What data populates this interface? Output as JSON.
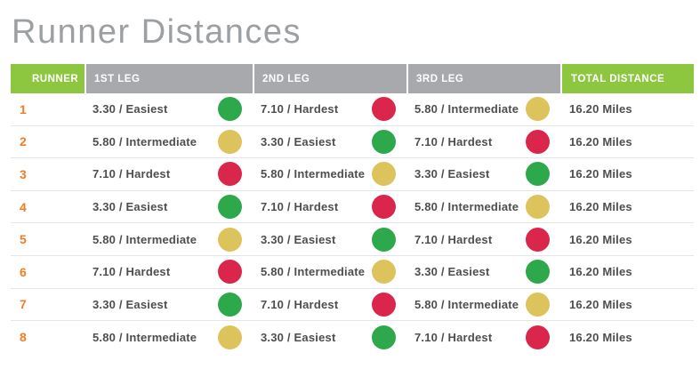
{
  "title": "Runner Distances",
  "colors": {
    "header_accent_green": "#8dc63f",
    "header_gray": "#a7a9ac",
    "runner_number_orange": "#f47b20",
    "body_text": "#4d4e50",
    "divider": "#e5e6e8",
    "title_gray": "#9da0a3",
    "dot_green": "#2da84b",
    "dot_yellow": "#ddc35b",
    "dot_red": "#d9264a"
  },
  "chart_data": {
    "type": "table",
    "title": "Runner Distances",
    "columns": [
      {
        "label": "RUNNER",
        "accent": true
      },
      {
        "label": "1ST LEG",
        "accent": false
      },
      {
        "label": "2ND LEG",
        "accent": false
      },
      {
        "label": "3RD LEG",
        "accent": false
      },
      {
        "label": "TOTAL DISTANCE",
        "accent": true
      }
    ],
    "difficulty_colors": {
      "Easiest": "#2da84b",
      "Intermediate": "#ddc35b",
      "Hardest": "#d9264a"
    },
    "rows": [
      {
        "runner": "1",
        "legs": [
          {
            "value": "3.30 / Easiest",
            "difficulty": "Easiest"
          },
          {
            "value": "7.10 / Hardest",
            "difficulty": "Hardest"
          },
          {
            "value": "5.80 / Intermediate",
            "difficulty": "Intermediate"
          }
        ],
        "total": "16.20 Miles"
      },
      {
        "runner": "2",
        "legs": [
          {
            "value": "5.80 / Intermediate",
            "difficulty": "Intermediate"
          },
          {
            "value": "3.30 / Easiest",
            "difficulty": "Easiest"
          },
          {
            "value": "7.10 / Hardest",
            "difficulty": "Hardest"
          }
        ],
        "total": "16.20 Miles"
      },
      {
        "runner": "3",
        "legs": [
          {
            "value": "7.10 / Hardest",
            "difficulty": "Hardest"
          },
          {
            "value": "5.80 / Intermediate",
            "difficulty": "Intermediate"
          },
          {
            "value": "3.30 / Easiest",
            "difficulty": "Easiest"
          }
        ],
        "total": "16.20 Miles"
      },
      {
        "runner": "4",
        "legs": [
          {
            "value": "3.30 / Easiest",
            "difficulty": "Easiest"
          },
          {
            "value": "7.10 / Hardest",
            "difficulty": "Hardest"
          },
          {
            "value": "5.80 / Intermediate",
            "difficulty": "Intermediate"
          }
        ],
        "total": "16.20 Miles"
      },
      {
        "runner": "5",
        "legs": [
          {
            "value": "5.80 / Intermediate",
            "difficulty": "Intermediate"
          },
          {
            "value": "3.30 / Easiest",
            "difficulty": "Easiest"
          },
          {
            "value": "7.10 / Hardest",
            "difficulty": "Hardest"
          }
        ],
        "total": "16.20 Miles"
      },
      {
        "runner": "6",
        "legs": [
          {
            "value": "7.10 / Hardest",
            "difficulty": "Hardest"
          },
          {
            "value": "5.80 / Intermediate",
            "difficulty": "Intermediate"
          },
          {
            "value": "3.30 / Easiest",
            "difficulty": "Easiest"
          }
        ],
        "total": "16.20 Miles"
      },
      {
        "runner": "7",
        "legs": [
          {
            "value": "3.30 / Easiest",
            "difficulty": "Easiest"
          },
          {
            "value": "7.10 / Hardest",
            "difficulty": "Hardest"
          },
          {
            "value": "5.80 / Intermediate",
            "difficulty": "Intermediate"
          }
        ],
        "total": "16.20 Miles"
      },
      {
        "runner": "8",
        "legs": [
          {
            "value": "5.80 / Intermediate",
            "difficulty": "Intermediate"
          },
          {
            "value": "3.30 / Easiest",
            "difficulty": "Easiest"
          },
          {
            "value": "7.10 / Hardest",
            "difficulty": "Hardest"
          }
        ],
        "total": "16.20 Miles"
      }
    ]
  }
}
